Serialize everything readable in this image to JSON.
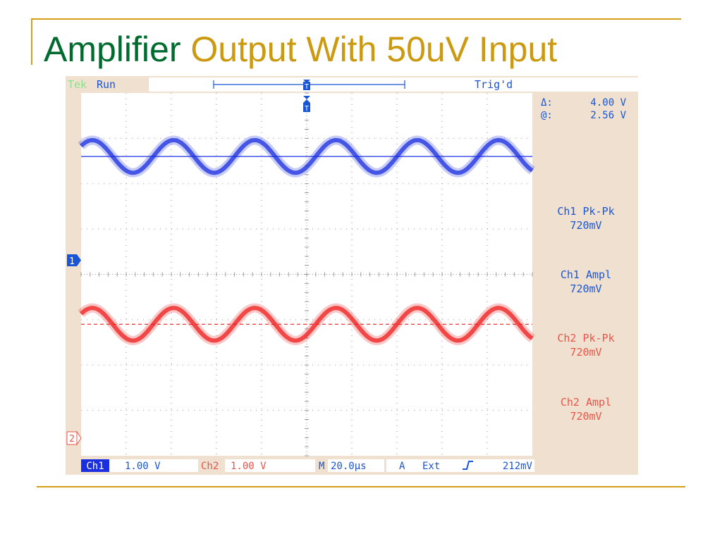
{
  "slide": {
    "title_part1": "Amplifier",
    "title_part2": "Output With 50uV Input"
  },
  "scope": {
    "brand": "Tek",
    "status": "Run",
    "trigger_state": "Trig'd",
    "trigger_marker": "T",
    "cursor_delta_label": "Δ:",
    "cursor_delta_value": "4.00 V",
    "cursor_at_label": "@:",
    "cursor_at_value": "2.56 V",
    "ch1_marker": "1",
    "ch2_marker": "2",
    "measurements": [
      {
        "name": "Ch1 Pk-Pk",
        "value": "720mV",
        "color": "#1a55d4"
      },
      {
        "name": "Ch1 Ampl",
        "value": "720mV",
        "color": "#1a55d4"
      },
      {
        "name": "Ch2 Pk-Pk",
        "value": "720mV",
        "color": "#e8564b"
      },
      {
        "name": "Ch2 Ampl",
        "value": "720mV",
        "color": "#e8564b"
      }
    ],
    "footer": {
      "ch1_label": "Ch1",
      "ch1_scale": "1.00 V",
      "ch2_label": "Ch2",
      "ch2_scale": "1.00 V",
      "time_label": "M",
      "time_scale": "20.0µs",
      "trigger_source_label": "A",
      "trigger_source": "Ext",
      "trigger_slope": "rising-edge-icon",
      "trigger_level": "212mV"
    },
    "colors": {
      "ch1": "#1a2fe0",
      "ch2": "#ee1c1c",
      "panel": "#efe0cf",
      "screen": "#ffffff",
      "label_blue": "#1a55d4",
      "label_red": "#e8564b"
    }
  },
  "chart_data": {
    "type": "line",
    "title": "",
    "xlabel": "",
    "ylabel": "",
    "x_divisions": 10,
    "y_divisions": 8,
    "time_per_div_us": 20.0,
    "volts_per_div": 1.0,
    "xlim_us": [
      0,
      200
    ],
    "series": [
      {
        "name": "Ch1",
        "color": "#1a2fe0",
        "amplitude_v": 0.36,
        "period_us": 36,
        "offset_div": 2.6,
        "ground_div": 2.6
      },
      {
        "name": "Ch2",
        "color": "#ee1c1c",
        "amplitude_v": 0.36,
        "period_us": 36,
        "offset_div": -1.1,
        "ground_div": -1.1
      }
    ]
  }
}
